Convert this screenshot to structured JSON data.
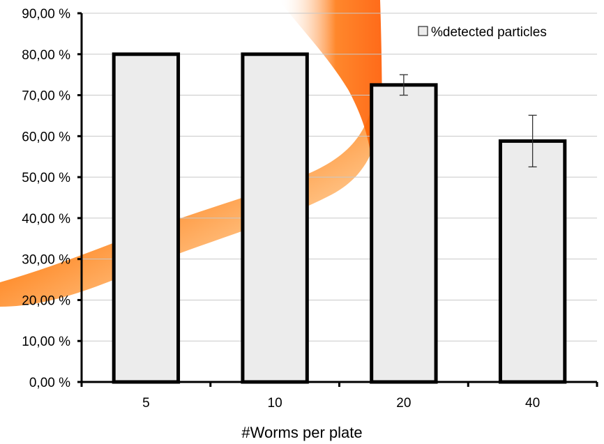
{
  "chart_data": {
    "type": "bar",
    "categories": [
      "5",
      "10",
      "20",
      "40"
    ],
    "series": [
      {
        "name": "%detected particles",
        "values": [
          80,
          80,
          72.5,
          58.8
        ],
        "error": [
          0,
          0,
          2.5,
          6.3
        ]
      }
    ],
    "xlabel": "#Worms per plate",
    "ylabel": "",
    "ylim": [
      0,
      90
    ],
    "yticks": [
      0,
      10,
      20,
      30,
      40,
      50,
      60,
      70,
      80,
      90
    ],
    "ytick_labels": [
      "0,00 %",
      "10,00 %",
      "20,00 %",
      "30,00 %",
      "40,00 %",
      "50,00 %",
      "60,00 %",
      "70,00 %",
      "80,00 %",
      "90,00 %"
    ],
    "grid": true,
    "legend_position": "top-right",
    "bar_fill": "#ececec",
    "bar_stroke": "#000000",
    "background_swoosh_color": "#ff6a00"
  }
}
